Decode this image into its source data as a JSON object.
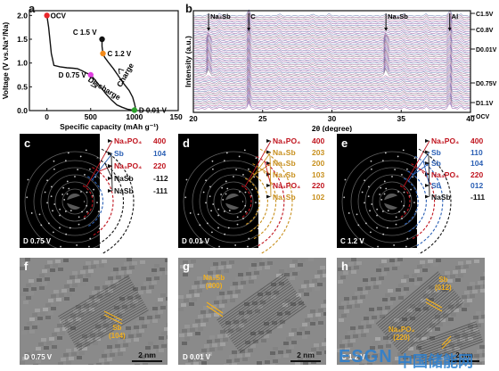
{
  "panels": {
    "a": {
      "letter": "a"
    },
    "b": {
      "letter": "b"
    },
    "c": {
      "letter": "c"
    },
    "d": {
      "letter": "d"
    },
    "e": {
      "letter": "e"
    },
    "f": {
      "letter": "f"
    },
    "g": {
      "letter": "g"
    },
    "h": {
      "letter": "h"
    }
  },
  "chart_data": [
    {
      "type": "line",
      "panel": "a",
      "xlabel": "Specific capacity (mAh g⁻¹)",
      "ylabel": "Voltage (V vs.Na⁺/Na)",
      "xlim": [
        -200,
        1500
      ],
      "ylim": [
        0,
        2.1
      ],
      "xticks": [
        0,
        500,
        1000,
        1500
      ],
      "yticks": [
        0.0,
        0.5,
        1.0,
        1.5,
        2.0
      ],
      "series": [
        {
          "name": "Discharge",
          "color": "#111111",
          "x": [
            0,
            20,
            50,
            80,
            150,
            230,
            300,
            350,
            400,
            450,
            500,
            560,
            620,
            680,
            740,
            800,
            860,
            920,
            980,
            1000
          ],
          "y": [
            2.0,
            1.75,
            1.2,
            0.95,
            0.92,
            0.9,
            0.89,
            0.88,
            0.84,
            0.79,
            0.75,
            0.62,
            0.48,
            0.34,
            0.22,
            0.12,
            0.07,
            0.03,
            0.01,
            0.01
          ]
        },
        {
          "name": "Charge",
          "color": "#111111",
          "x": [
            1000,
            1010,
            1000,
            980,
            940,
            880,
            820,
            760,
            700,
            660,
            640,
            630,
            630
          ],
          "y": [
            0.01,
            0.07,
            0.15,
            0.28,
            0.42,
            0.56,
            0.72,
            0.88,
            1.02,
            1.12,
            1.2,
            1.35,
            1.5
          ]
        }
      ],
      "points": [
        {
          "label": "OCV",
          "x": 0,
          "y": 2.0,
          "color": "#e8262a"
        },
        {
          "label": "C 1.5 V",
          "x": 630,
          "y": 1.5,
          "color": "#111111"
        },
        {
          "label": "C 1.2 V",
          "x": 640,
          "y": 1.2,
          "color": "#f28a1a"
        },
        {
          "label": "D 0.75 V",
          "x": 500,
          "y": 0.75,
          "color": "#e040e0"
        },
        {
          "label": "D 0.01 V",
          "x": 1000,
          "y": 0.01,
          "color": "#2aa02a"
        }
      ],
      "annotations": [
        "Discharge",
        "Charge"
      ]
    },
    {
      "type": "line",
      "panel": "b",
      "xlabel": "2θ (degree)",
      "ylabel": "Intensity (a.u.)",
      "xlim": [
        20,
        40
      ],
      "xticks": [
        20,
        25,
        30,
        35,
        40
      ],
      "peak_labels": [
        {
          "label": "Na₃Sb",
          "x": 21.1
        },
        {
          "label": "C",
          "x": 24.0
        },
        {
          "label": "Na₃Sb",
          "x": 33.9
        },
        {
          "label": "Al",
          "x": 38.5
        }
      ],
      "state_labels": [
        "C1.5V",
        "C0.8V",
        "D0.01V",
        "D0.75V",
        "D1.1V",
        "OCV"
      ],
      "peaks": [
        21.1,
        21.9,
        24.0,
        26.2,
        28.6,
        29.8,
        33.9,
        35.2,
        36.8,
        38.5,
        39.3
      ],
      "num_traces": 60
    }
  ],
  "saed": [
    {
      "id": "c",
      "caption": "D 0.75 V",
      "rings": [
        {
          "phase": "Na₃PO₄",
          "hkl": "400",
          "color": "#c0141e",
          "hklColor": "#c0141e"
        },
        {
          "phase": "Sb",
          "hkl": "104",
          "color": "#2a5fb4",
          "hklColor": "#2a5fb4"
        },
        {
          "phase": "Na₃PO₄",
          "hkl": "220",
          "color": "#c0141e",
          "hklColor": "#c0141e"
        },
        {
          "phase": "NaSb",
          "hkl": "-112",
          "color": "#111111",
          "hklColor": "#111111"
        },
        {
          "phase": "NaSb",
          "hkl": "-111",
          "color": "#111111",
          "hklColor": "#111111"
        }
      ]
    },
    {
      "id": "d",
      "caption": "D 0.01 V",
      "rings": [
        {
          "phase": "Na₃PO₄",
          "hkl": "400",
          "color": "#c0141e",
          "hklColor": "#c0141e"
        },
        {
          "phase": "Na₃Sb",
          "hkl": "203",
          "color": "#c8901e",
          "hklColor": "#c8901e"
        },
        {
          "phase": "Na₃Sb",
          "hkl": "200",
          "color": "#c8901e",
          "hklColor": "#c8901e"
        },
        {
          "phase": "Na₃Sb",
          "hkl": "103",
          "color": "#c8901e",
          "hklColor": "#c8901e"
        },
        {
          "phase": "Na₃PO₄",
          "hkl": "220",
          "color": "#c0141e",
          "hklColor": "#c0141e"
        },
        {
          "phase": "Na₃Sb",
          "hkl": "102",
          "color": "#c8901e",
          "hklColor": "#c8901e"
        }
      ]
    },
    {
      "id": "e",
      "caption": "C 1.2 V",
      "rings": [
        {
          "phase": "Na₃PO₄",
          "hkl": "400",
          "color": "#c0141e",
          "hklColor": "#c0141e"
        },
        {
          "phase": "Sb",
          "hkl": "110",
          "color": "#2a5fb4",
          "hklColor": "#2a5fb4"
        },
        {
          "phase": "Sb",
          "hkl": "104",
          "color": "#2a5fb4",
          "hklColor": "#2a5fb4"
        },
        {
          "phase": "Na₃PO₄",
          "hkl": "220",
          "color": "#c0141e",
          "hklColor": "#c0141e"
        },
        {
          "phase": "Sb",
          "hkl": "012",
          "color": "#2a5fb4",
          "hklColor": "#2a5fb4"
        },
        {
          "phase": "NaSb",
          "hkl": "-111",
          "color": "#111111",
          "hklColor": "#111111"
        }
      ]
    }
  ],
  "hrtem": [
    {
      "id": "f",
      "caption": "D 0.75 V",
      "tags": [
        {
          "text": "Sb",
          "sub": "(104)"
        }
      ],
      "scale": "2 nm"
    },
    {
      "id": "g",
      "caption": "D 0.01 V",
      "tags": [
        {
          "text": "Na₃Sb",
          "sub": "(200)"
        }
      ],
      "scale": "2 nm"
    },
    {
      "id": "h",
      "caption": "C 1.2 V",
      "tags": [
        {
          "text": "Sb",
          "sub": "(012)"
        },
        {
          "text": "Na₃PO₄",
          "sub": "(220)"
        }
      ],
      "scale": "2 nm"
    }
  ],
  "watermark": {
    "brand": "ESGN",
    "site": "中国储能网"
  }
}
